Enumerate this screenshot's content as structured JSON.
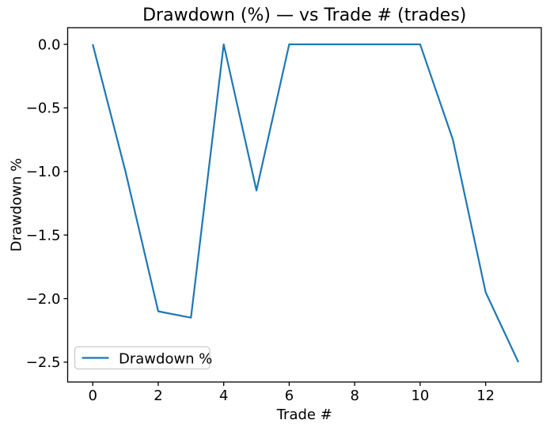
{
  "chart_data": {
    "type": "line",
    "title": "Drawdown (%) — vs Trade # (trades)",
    "xlabel": "Trade #",
    "ylabel": "Drawdown %",
    "x": [
      0,
      1,
      2,
      3,
      4,
      5,
      6,
      7,
      8,
      9,
      10,
      11,
      12,
      13
    ],
    "series": [
      {
        "name": "Drawdown %",
        "color": "#1f77b4",
        "values": [
          0.0,
          -1.0,
          -2.1,
          -2.15,
          0.0,
          -1.15,
          0.0,
          0.0,
          0.0,
          0.0,
          0.0,
          -0.75,
          -1.95,
          -2.5
        ]
      }
    ],
    "x_ticks": [
      0,
      2,
      4,
      6,
      8,
      10,
      12
    ],
    "y_ticks": [
      0.0,
      -0.5,
      -1.0,
      -1.5,
      -2.0,
      -2.5
    ],
    "xlim": [
      -0.766,
      13.7
    ],
    "ylim": [
      -2.656,
      0.131
    ],
    "grid": false,
    "legend": {
      "position": "lower left",
      "entries": [
        "Drawdown %"
      ]
    },
    "colors": {
      "background": "#ffffff",
      "axes_frame": "#000000",
      "text": "#000000",
      "legend_border": "#cccccc"
    }
  }
}
